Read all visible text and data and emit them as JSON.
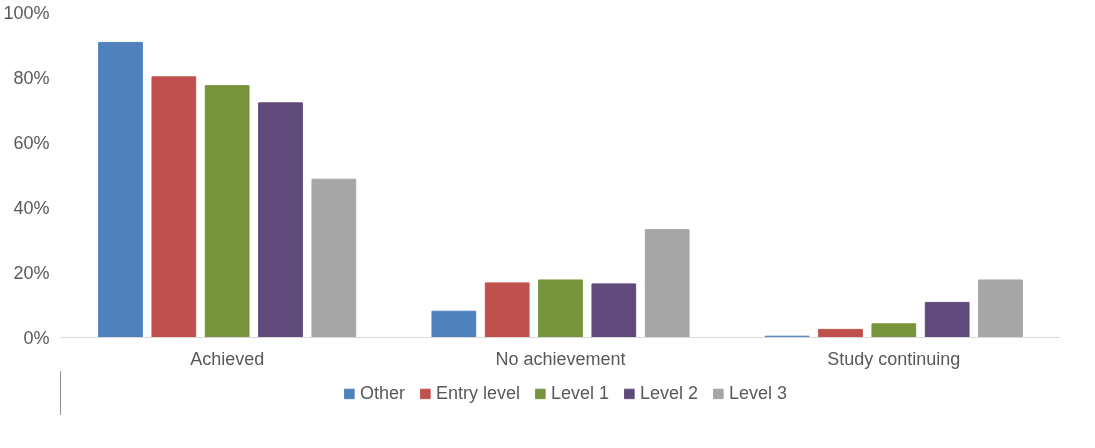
{
  "chart_data": {
    "type": "bar",
    "categories": [
      "Achieved",
      "No achievement",
      "Study continuing"
    ],
    "series": [
      {
        "name": "Other",
        "color": "#4f81bd",
        "values": [
          90.8,
          8.1,
          0.4
        ]
      },
      {
        "name": "Entry level",
        "color": "#c0504d",
        "values": [
          80.2,
          16.8,
          2.5
        ]
      },
      {
        "name": "Level 1",
        "color": "#77933c",
        "values": [
          77.5,
          17.7,
          4.2
        ]
      },
      {
        "name": "Level 2",
        "color": "#604a7b",
        "values": [
          72.2,
          16.5,
          10.8
        ]
      },
      {
        "name": "Level 3",
        "color": "#a6a6a6",
        "values": [
          48.7,
          33.2,
          17.7
        ]
      }
    ],
    "ylim": [
      0,
      100
    ],
    "yticks": [
      {
        "value": 0,
        "label": "0%"
      },
      {
        "value": 20,
        "label": "20%"
      },
      {
        "value": 40,
        "label": "40%"
      },
      {
        "value": 60,
        "label": "60%"
      },
      {
        "value": 80,
        "label": "80%"
      },
      {
        "value": 100,
        "label": "100%"
      }
    ],
    "grid": false,
    "legend": "bottom"
  }
}
